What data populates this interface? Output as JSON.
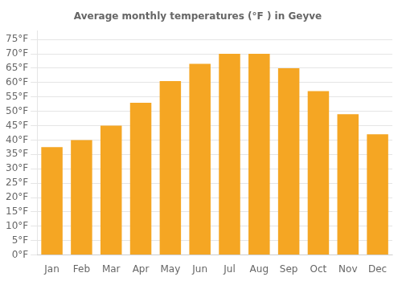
{
  "chart_data": {
    "type": "bar",
    "title": "Average monthly temperatures (°F ) in Geyve",
    "categories": [
      "Jan",
      "Feb",
      "Mar",
      "Apr",
      "May",
      "Jun",
      "Jul",
      "Aug",
      "Sep",
      "Oct",
      "Nov",
      "Dec"
    ],
    "values": [
      37.5,
      40,
      45,
      53,
      60.5,
      66.5,
      70,
      70,
      65,
      57,
      49,
      42
    ],
    "color": "#F5A623",
    "ylim": [
      0,
      78
    ],
    "yticks": [
      {
        "value": 0,
        "label": "0°F"
      },
      {
        "value": 5,
        "label": "5°F"
      },
      {
        "value": 10,
        "label": "10°F"
      },
      {
        "value": 15,
        "label": "15°F"
      },
      {
        "value": 20,
        "label": "20°F"
      },
      {
        "value": 25,
        "label": "25°F"
      },
      {
        "value": 30,
        "label": "30°F"
      },
      {
        "value": 35,
        "label": "35°F"
      },
      {
        "value": 40,
        "label": "40°F"
      },
      {
        "value": 45,
        "label": "45°F"
      },
      {
        "value": 50,
        "label": "50°F"
      },
      {
        "value": 55,
        "label": "55°F"
      },
      {
        "value": 60,
        "label": "60°F"
      },
      {
        "value": 65,
        "label": "65°F"
      },
      {
        "value": 70,
        "label": "70°F"
      },
      {
        "value": 75,
        "label": "75°F"
      }
    ],
    "grid": true
  }
}
